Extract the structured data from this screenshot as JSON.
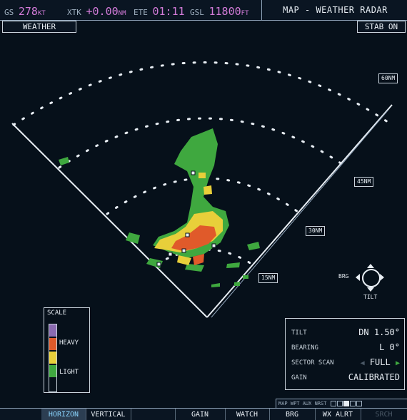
{
  "topbar": {
    "gs_label": "GS",
    "gs_value": "278",
    "gs_unit": "KT",
    "xtk_label": "XTK",
    "xtk_value": "+0.00",
    "xtk_unit": "NM",
    "ete_label": "ETE",
    "ete_value": "01:11",
    "gsl_label": "GSL",
    "gsl_value": "11800",
    "gsl_unit": "FT",
    "page_title": "MAP - WEATHER RADAR"
  },
  "mode_label": "WEATHER",
  "stab_label": "STAB ON",
  "range_rings": [
    "15NM",
    "30NM",
    "45NM",
    "60NM"
  ],
  "cursor": {
    "brg_label": "BRG",
    "tilt_label": "TILT"
  },
  "scale": {
    "title": "SCALE",
    "heavy_label": "HEAVY",
    "light_label": "LIGHT",
    "colors": [
      "#8a6ab0",
      "#e05a2a",
      "#e8cf3a",
      "#3fa83f",
      "#06101a"
    ]
  },
  "settings": {
    "tilt_label": "TILT",
    "tilt_value": "DN 1.50°",
    "bearing_label": "BEARING",
    "bearing_value": "L 0°",
    "sector_label": "SECTOR SCAN",
    "sector_value": "FULL",
    "gain_label": "GAIN",
    "gain_value": "CALIBRATED"
  },
  "page_nav": {
    "label": "MAP WPT AUX NRST"
  },
  "softkeys": [
    {
      "label": "HORIZON",
      "active": true
    },
    {
      "label": "VERTICAL",
      "active": false
    },
    {
      "label": "",
      "active": false
    },
    {
      "label": "GAIN",
      "active": false
    },
    {
      "label": "WATCH",
      "active": false
    },
    {
      "label": "BRG",
      "active": false
    },
    {
      "label": "WX ALRT",
      "active": false
    },
    {
      "label": "SRCH",
      "active": false,
      "dim": true
    }
  ],
  "colors": {
    "accent": "#d27bd8",
    "heavy": "#e05a2a",
    "moderate": "#e8cf3a",
    "light": "#3fa83f"
  }
}
